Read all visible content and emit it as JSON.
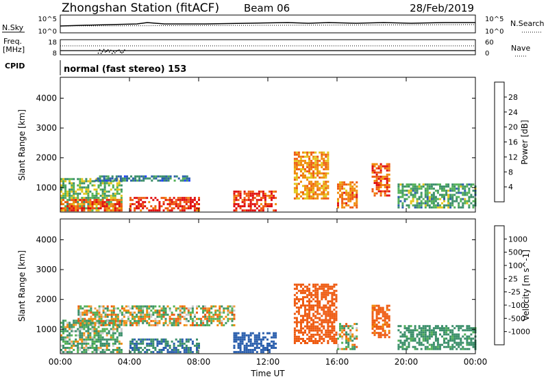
{
  "header": {
    "title": "Zhongshan Station (fitACF)",
    "beam": "Beam 06",
    "date": "28/Feb/2019"
  },
  "noise_panel": {
    "left_label": "N.Sky",
    "left_ticks": [
      "10^5",
      "10^0"
    ],
    "right_ticks": [
      "10^5",
      "10^0"
    ],
    "right_label": "N.Search"
  },
  "freq_panel": {
    "left_label_line1": "Freq.",
    "left_label_line2": "[MHz]",
    "left_ticks": [
      "18",
      "8"
    ],
    "right_ticks": [
      "60",
      "0"
    ],
    "right_label": "Nave"
  },
  "cpid": {
    "label": "CPID",
    "text": "normal (fast stereo) 153"
  },
  "colors": {
    "power": [
      "#1f3cff",
      "#2b5fad",
      "#3b8f6a",
      "#52b056",
      "#e3c51a",
      "#f08a0a",
      "#ee5a10",
      "#e01010"
    ],
    "velocity": [
      "#e01010",
      "#ee5a10",
      "#f08a0a",
      "#f0a040",
      "#c8c8c8",
      "#52b056",
      "#3b8f6a",
      "#2b5fad",
      "#1f3cff"
    ]
  },
  "chart_data": [
    {
      "type": "heatmap",
      "name": "power",
      "xlabel": "Time UT",
      "ylabel": "Slant Range [km]",
      "x_ticks": [
        "00:00",
        "04:00",
        "08:00",
        "12:00",
        "16:00",
        "20:00",
        "00:00"
      ],
      "y_ticks": [
        "1000",
        "2000",
        "3000",
        "4000"
      ],
      "ylim": [
        180,
        4700
      ],
      "colorbar_label": "Power [dB]",
      "colorbar_ticks": [
        "4",
        "8",
        "12",
        "16",
        "20",
        "24",
        "28"
      ],
      "colorbar_range": [
        0,
        32
      ],
      "echo_regions": [
        {
          "t": [
            0.0,
            3.5
          ],
          "range": [
            200,
            1300
          ],
          "power": 14
        },
        {
          "t": [
            0.0,
            3.5
          ],
          "range": [
            200,
            600
          ],
          "power": 26
        },
        {
          "t": [
            2.0,
            7.5
          ],
          "range": [
            1200,
            1400
          ],
          "power": 8
        },
        {
          "t": [
            4.0,
            8.0
          ],
          "range": [
            200,
            650
          ],
          "power": 28
        },
        {
          "t": [
            10.0,
            12.5
          ],
          "range": [
            200,
            900
          ],
          "power": 28
        },
        {
          "t": [
            13.5,
            15.5
          ],
          "range": [
            600,
            2200
          ],
          "power": 22
        },
        {
          "t": [
            16.0,
            17.2
          ],
          "range": [
            300,
            1200
          ],
          "power": 24
        },
        {
          "t": [
            18.0,
            19.0
          ],
          "range": [
            700,
            1800
          ],
          "power": 26
        },
        {
          "t": [
            19.5,
            24.0
          ],
          "range": [
            300,
            1100
          ],
          "power": 12
        }
      ]
    },
    {
      "type": "heatmap",
      "name": "velocity",
      "xlabel": "Time UT",
      "ylabel": "Slant Range [km]",
      "x_ticks": [
        "00:00",
        "04:00",
        "08:00",
        "12:00",
        "16:00",
        "20:00",
        "00:00"
      ],
      "y_ticks": [
        "1000",
        "2000",
        "3000",
        "4000"
      ],
      "ylim": [
        180,
        4700
      ],
      "colorbar_label": "Velocity [m s^-1]",
      "colorbar_ticks": [
        "1000",
        "500",
        "100",
        "25",
        "-25",
        "-100",
        "-500",
        "-1000"
      ],
      "echo_regions": [
        {
          "t": [
            0.0,
            3.5
          ],
          "range": [
            200,
            1300
          ],
          "velocity": 100
        },
        {
          "t": [
            1.0,
            10.0
          ],
          "range": [
            1100,
            1800
          ],
          "velocity": 0
        },
        {
          "t": [
            4.0,
            8.0
          ],
          "range": [
            200,
            650
          ],
          "velocity": 500
        },
        {
          "t": [
            10.0,
            12.5
          ],
          "range": [
            200,
            900
          ],
          "velocity": 800
        },
        {
          "t": [
            13.5,
            16.0
          ],
          "range": [
            500,
            2500
          ],
          "velocity": -300
        },
        {
          "t": [
            16.0,
            17.2
          ],
          "range": [
            300,
            1200
          ],
          "velocity": 0
        },
        {
          "t": [
            18.0,
            19.0
          ],
          "range": [
            700,
            1800
          ],
          "velocity": -200
        },
        {
          "t": [
            19.5,
            24.0
          ],
          "range": [
            300,
            1100
          ],
          "velocity": 200
        }
      ]
    }
  ]
}
